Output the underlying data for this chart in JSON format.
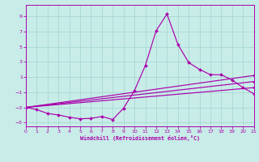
{
  "xlabel": "Windchill (Refroidissement éolien,°C)",
  "bg": "#c8ece8",
  "grid_color": "#a8d8d4",
  "lc": "#aa00aa",
  "xlim": [
    0,
    21
  ],
  "ylim": [
    -5.5,
    10.5
  ],
  "xticks": [
    0,
    1,
    2,
    3,
    4,
    5,
    6,
    7,
    8,
    9,
    10,
    11,
    12,
    13,
    14,
    15,
    16,
    17,
    18,
    19,
    20,
    21
  ],
  "yticks": [
    -5,
    -3,
    -1,
    1,
    3,
    5,
    7,
    9
  ],
  "line_main_x": [
    0,
    1,
    2,
    3,
    4,
    5,
    6,
    7,
    8,
    9,
    10,
    11,
    12,
    13,
    14,
    15,
    16,
    17,
    18,
    19,
    20,
    21
  ],
  "line_main_y": [
    -3.0,
    -3.3,
    -3.8,
    -4.0,
    -4.3,
    -4.5,
    -4.45,
    -4.2,
    -4.6,
    -3.1,
    -0.8,
    2.5,
    7.1,
    9.3,
    5.3,
    2.9,
    2.0,
    1.3,
    1.3,
    0.6,
    -0.4,
    -1.2
  ],
  "line2_x": [
    0,
    21
  ],
  "line2_y": [
    -3.0,
    1.2
  ],
  "line3_x": [
    0,
    21
  ],
  "line3_y": [
    -3.0,
    0.4
  ],
  "line4_x": [
    0,
    21
  ],
  "line4_y": [
    -3.0,
    -0.4
  ]
}
